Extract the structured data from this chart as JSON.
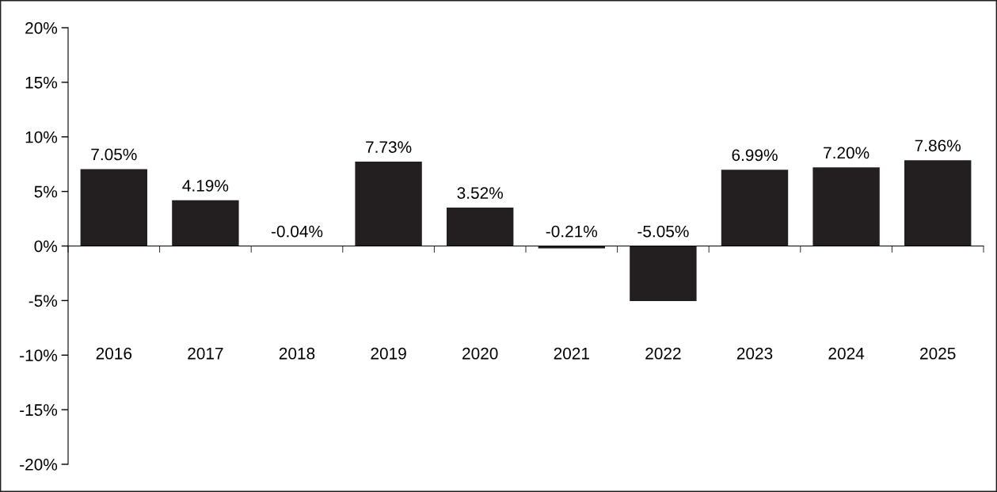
{
  "chart_data": {
    "type": "bar",
    "categories": [
      "2016",
      "2017",
      "2018",
      "2019",
      "2020",
      "2021",
      "2022",
      "2023",
      "2024",
      "2025"
    ],
    "values": [
      7.05,
      4.19,
      -0.04,
      7.73,
      3.52,
      -0.21,
      -5.05,
      6.99,
      7.2,
      7.86
    ],
    "value_labels": [
      "7.05%",
      "4.19%",
      "-0.04%",
      "7.73%",
      "3.52%",
      "-0.21%",
      "-5.05%",
      "6.99%",
      "7.20%",
      "7.86%"
    ],
    "color": "#231f20",
    "ylim": [
      -20,
      20
    ],
    "yticks": [
      {
        "value": -20,
        "label": "-20%"
      },
      {
        "value": -15,
        "label": "-15%"
      },
      {
        "value": -10,
        "label": "-10%"
      },
      {
        "value": -5,
        "label": "-5%"
      },
      {
        "value": 0,
        "label": "0%"
      },
      {
        "value": 5,
        "label": "5%"
      },
      {
        "value": 10,
        "label": "10%"
      },
      {
        "value": 15,
        "label": "15%"
      },
      {
        "value": 20,
        "label": "20%"
      }
    ],
    "legend": false
  }
}
